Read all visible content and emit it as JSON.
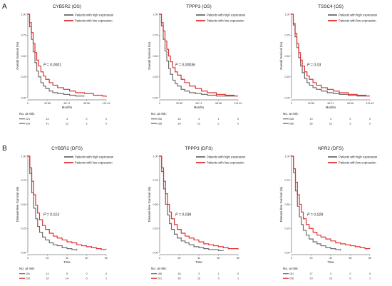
{
  "panels": [
    {
      "letter": "A"
    },
    {
      "letter": "B"
    }
  ],
  "chart_data": [
    {
      "type": "line",
      "title": "CYB5R2 (OS)",
      "xlabel": "Months",
      "ylabel": "Overall Survival (%)",
      "xticks": [
        0,
        32.85,
        65.71,
        98.56,
        131.42
      ],
      "xtick_labels": [
        "0",
        "32.85",
        "65.71",
        "98.56",
        "131.42"
      ],
      "xlim": [
        0,
        131.42
      ],
      "yticks": [
        0,
        0.25,
        0.5,
        0.75,
        1
      ],
      "ytick_labels": [
        "0.00",
        "0.25",
        "0.50",
        "0.75",
        "1.00"
      ],
      "ylim": [
        0,
        1
      ],
      "pvalue": "P = 0.0001",
      "legend": "top-right",
      "series": [
        {
          "name": "Patients with high expression",
          "color": "#6b6b6b",
          "x": [
            0,
            3,
            6,
            9,
            12,
            15,
            18,
            22,
            26,
            30,
            36,
            42,
            50,
            60,
            70,
            80,
            95
          ],
          "y": [
            1,
            0.85,
            0.7,
            0.55,
            0.42,
            0.32,
            0.25,
            0.18,
            0.14,
            0.11,
            0.08,
            0.06,
            0.05,
            0.04,
            0.03,
            0.02,
            0.02
          ]
        },
        {
          "name": "Patients with low expression",
          "color": "#e03030",
          "x": [
            0,
            3,
            6,
            9,
            12,
            15,
            18,
            22,
            26,
            30,
            36,
            42,
            50,
            60,
            70,
            80,
            95,
            110,
            125,
            131.42
          ],
          "y": [
            1,
            0.9,
            0.78,
            0.65,
            0.54,
            0.45,
            0.38,
            0.31,
            0.26,
            0.22,
            0.18,
            0.15,
            0.12,
            0.1,
            0.08,
            0.06,
            0.05,
            0.03,
            0.02,
            0.01
          ]
        }
      ],
      "risk_title": "No. at risk:",
      "risk_table": [
        {
          "color": "#6b6b6b",
          "values": [
            "221",
            "14",
            "4",
            "0",
            "0"
          ]
        },
        {
          "color": "#e03030",
          "values": [
            "303",
            "41",
            "12",
            "3",
            "0"
          ]
        }
      ]
    },
    {
      "type": "line",
      "title": "TPPP3 (OS)",
      "xlabel": "Months",
      "ylabel": "Overall Survival (%)",
      "xticks": [
        0,
        32.85,
        65.71,
        98.56,
        131.42
      ],
      "xtick_labels": [
        "0",
        "32.85",
        "65.71",
        "98.56",
        "131.42"
      ],
      "xlim": [
        0,
        131.42
      ],
      "yticks": [
        0,
        0.25,
        0.5,
        0.75,
        1
      ],
      "ytick_labels": [
        "0.00",
        "0.25",
        "0.50",
        "0.75",
        "1.00"
      ],
      "ylim": [
        0,
        1
      ],
      "pvalue": "P = 0.00036",
      "legend": "top-right",
      "series": [
        {
          "name": "Patients with high expression",
          "color": "#6b6b6b",
          "x": [
            0,
            3,
            6,
            9,
            12,
            15,
            18,
            22,
            26,
            30,
            36,
            42,
            50,
            60,
            70,
            80,
            95,
            110,
            125
          ],
          "y": [
            1,
            0.86,
            0.7,
            0.56,
            0.44,
            0.35,
            0.28,
            0.21,
            0.17,
            0.14,
            0.1,
            0.08,
            0.06,
            0.05,
            0.04,
            0.03,
            0.02,
            0.02,
            0.02
          ]
        },
        {
          "name": "Patients with low expression",
          "color": "#e03030",
          "x": [
            0,
            3,
            6,
            9,
            12,
            15,
            18,
            22,
            26,
            30,
            36,
            42,
            50,
            60,
            70,
            80,
            95,
            110,
            125,
            131.42
          ],
          "y": [
            1,
            0.9,
            0.8,
            0.68,
            0.58,
            0.5,
            0.43,
            0.36,
            0.31,
            0.27,
            0.22,
            0.18,
            0.14,
            0.11,
            0.08,
            0.06,
            0.04,
            0.03,
            0.02,
            0.02
          ]
        }
      ],
      "risk_title": "No. at risk:",
      "risk_table": [
        {
          "color": "#6b6b6b",
          "values": [
            "256",
            "16",
            "4",
            "1",
            "0"
          ]
        },
        {
          "color": "#e03030",
          "values": [
            "268",
            "39",
            "12",
            "2",
            "0"
          ]
        }
      ]
    },
    {
      "type": "line",
      "title": "TSSC4 (OS)",
      "xlabel": "Months",
      "ylabel": "Overall Survival (%)",
      "xticks": [
        0,
        32.85,
        65.71,
        98.56,
        131.42
      ],
      "xtick_labels": [
        "0",
        "32.85",
        "65.71",
        "98.56",
        "131.42"
      ],
      "xlim": [
        0,
        131.42
      ],
      "yticks": [
        0,
        0.25,
        0.5,
        0.75,
        1
      ],
      "ytick_labels": [
        "0.00",
        "0.25",
        "0.50",
        "0.75",
        "1.00"
      ],
      "ylim": [
        0,
        1
      ],
      "pvalue": "P = 0.03",
      "legend": "top-right",
      "series": [
        {
          "name": "Patients with high expression",
          "color": "#6b6b6b",
          "x": [
            0,
            3,
            6,
            9,
            12,
            15,
            18,
            22,
            26,
            30,
            36,
            42,
            50,
            60,
            70,
            80,
            95,
            110,
            125
          ],
          "y": [
            1,
            0.87,
            0.73,
            0.6,
            0.48,
            0.38,
            0.3,
            0.23,
            0.18,
            0.15,
            0.12,
            0.1,
            0.08,
            0.06,
            0.05,
            0.04,
            0.03,
            0.02,
            0.02
          ]
        },
        {
          "name": "Patients with low expression",
          "color": "#e03030",
          "x": [
            0,
            3,
            6,
            9,
            12,
            15,
            18,
            22,
            26,
            30,
            36,
            42,
            50,
            60,
            70,
            80,
            95,
            110,
            125,
            131.42
          ],
          "y": [
            1,
            0.89,
            0.77,
            0.65,
            0.54,
            0.45,
            0.38,
            0.31,
            0.26,
            0.22,
            0.18,
            0.15,
            0.12,
            0.1,
            0.08,
            0.06,
            0.04,
            0.03,
            0.02,
            0.02
          ]
        }
      ],
      "risk_title": "No. at risk:",
      "risk_table": [
        {
          "color": "#6b6b6b",
          "values": [
            "238",
            "19",
            "4",
            "0",
            "0"
          ]
        },
        {
          "color": "#e03030",
          "values": [
            "286",
            "36",
            "12",
            "3",
            "0"
          ]
        }
      ]
    },
    {
      "type": "line",
      "title": "CYB5R2 (DFS)",
      "xlabel": "Time",
      "ylabel": "Disease-free Survival (%)",
      "xticks": [
        0,
        20,
        40,
        60,
        80
      ],
      "xtick_labels": [
        "0",
        "20",
        "40",
        "60",
        "80"
      ],
      "xlim": [
        0,
        80
      ],
      "yticks": [
        0,
        0.25,
        0.5,
        0.75,
        1
      ],
      "ytick_labels": [
        "0.00",
        "0.25",
        "0.50",
        "0.75",
        "1.00"
      ],
      "ylim": [
        0,
        1
      ],
      "pvalue": "P = 0.013",
      "legend": "top-right",
      "series": [
        {
          "name": "Patients with high expression",
          "color": "#6b6b6b",
          "x": [
            0,
            2,
            4,
            6,
            8,
            10,
            12,
            15,
            18,
            22,
            26,
            30,
            35,
            40,
            45,
            50
          ],
          "y": [
            1,
            0.82,
            0.62,
            0.46,
            0.35,
            0.27,
            0.21,
            0.16,
            0.13,
            0.1,
            0.08,
            0.07,
            0.05,
            0.04,
            0.03,
            0.02
          ]
        },
        {
          "name": "Patients with low expression",
          "color": "#e03030",
          "x": [
            0,
            2,
            4,
            6,
            8,
            10,
            12,
            15,
            18,
            22,
            26,
            30,
            35,
            40,
            45,
            50,
            55,
            60,
            65,
            70,
            75,
            80
          ],
          "y": [
            1,
            0.88,
            0.74,
            0.6,
            0.49,
            0.41,
            0.34,
            0.28,
            0.24,
            0.2,
            0.17,
            0.15,
            0.13,
            0.11,
            0.1,
            0.08,
            0.07,
            0.06,
            0.05,
            0.04,
            0.03,
            0.03
          ]
        }
      ],
      "risk_title": "No. at risk:",
      "risk_table": [
        {
          "color": "#6b6b6b",
          "values": [
            "161",
            "14",
            "5",
            "0",
            "0"
          ]
        },
        {
          "color": "#e03030",
          "values": [
            "226",
            "32",
            "14",
            "6",
            "1"
          ]
        }
      ]
    },
    {
      "type": "line",
      "title": "TPPP3 (DFS)",
      "xlabel": "Time",
      "ylabel": "Disease-free Survival (%)",
      "xticks": [
        0,
        20,
        40,
        60,
        80
      ],
      "xtick_labels": [
        "0",
        "20",
        "40",
        "60",
        "80"
      ],
      "xlim": [
        0,
        80
      ],
      "yticks": [
        0,
        0.25,
        0.5,
        0.75,
        1
      ],
      "ytick_labels": [
        "0.00",
        "0.25",
        "0.50",
        "0.75",
        "1.00"
      ],
      "ylim": [
        0,
        1
      ],
      "pvalue": "P = 0.039",
      "legend": "top-right",
      "series": [
        {
          "name": "Patients with high expression",
          "color": "#6b6b6b",
          "x": [
            0,
            2,
            4,
            6,
            8,
            10,
            12,
            15,
            18,
            22,
            26,
            30,
            35,
            40,
            45,
            50,
            55,
            60,
            65
          ],
          "y": [
            1,
            0.84,
            0.66,
            0.5,
            0.39,
            0.3,
            0.24,
            0.19,
            0.15,
            0.12,
            0.1,
            0.08,
            0.06,
            0.05,
            0.04,
            0.03,
            0.03,
            0.02,
            0.02
          ]
        },
        {
          "name": "Patients with low expression",
          "color": "#e03030",
          "x": [
            0,
            2,
            4,
            6,
            8,
            10,
            12,
            15,
            18,
            22,
            26,
            30,
            35,
            40,
            45,
            50,
            55,
            60,
            65,
            70,
            75,
            80
          ],
          "y": [
            1,
            0.88,
            0.74,
            0.61,
            0.5,
            0.42,
            0.35,
            0.29,
            0.24,
            0.2,
            0.17,
            0.15,
            0.13,
            0.11,
            0.09,
            0.08,
            0.07,
            0.06,
            0.05,
            0.04,
            0.04,
            0.03
          ]
        }
      ],
      "risk_title": "No. at risk:",
      "risk_table": [
        {
          "color": "#6b6b6b",
          "values": [
            "186",
            "16",
            "3",
            "1",
            "0"
          ]
        },
        {
          "color": "#e03030",
          "values": [
            "201",
            "30",
            "16",
            "5",
            "1"
          ]
        }
      ]
    },
    {
      "type": "line",
      "title": "NPR2 (DFS)",
      "xlabel": "Time",
      "ylabel": "Disease-free Survival (%)",
      "xticks": [
        0,
        20,
        40,
        60,
        80
      ],
      "xtick_labels": [
        "0",
        "20",
        "40",
        "60",
        "80"
      ],
      "xlim": [
        0,
        80
      ],
      "yticks": [
        0,
        0.25,
        0.5,
        0.75,
        1
      ],
      "ytick_labels": [
        "0.00",
        "0.25",
        "0.50",
        "0.75",
        "1.00"
      ],
      "ylim": [
        0,
        1
      ],
      "pvalue": "P = 0.029",
      "legend": "top-right",
      "series": [
        {
          "name": "Patients with high expression",
          "color": "#6b6b6b",
          "x": [
            0,
            2,
            4,
            6,
            8,
            10,
            12,
            15,
            18,
            22,
            26,
            30,
            35,
            40,
            45,
            50
          ],
          "y": [
            1,
            0.83,
            0.64,
            0.48,
            0.37,
            0.29,
            0.23,
            0.18,
            0.14,
            0.11,
            0.09,
            0.07,
            0.05,
            0.04,
            0.03,
            0.02
          ]
        },
        {
          "name": "Patients with low expression",
          "color": "#e03030",
          "x": [
            0,
            2,
            4,
            6,
            8,
            10,
            12,
            15,
            18,
            22,
            26,
            30,
            35,
            40,
            45,
            50,
            55,
            60,
            65,
            70,
            75,
            80
          ],
          "y": [
            1,
            0.87,
            0.73,
            0.6,
            0.5,
            0.42,
            0.35,
            0.29,
            0.25,
            0.21,
            0.18,
            0.16,
            0.14,
            0.12,
            0.1,
            0.09,
            0.08,
            0.07,
            0.06,
            0.05,
            0.04,
            0.04
          ]
        }
      ],
      "risk_title": "No. at risk:",
      "risk_table": [
        {
          "color": "#6b6b6b",
          "values": [
            "181",
            "17",
            "4",
            "0",
            "0"
          ]
        },
        {
          "color": "#e03030",
          "values": [
            "206",
            "29",
            "15",
            "6",
            "1"
          ]
        }
      ]
    }
  ]
}
